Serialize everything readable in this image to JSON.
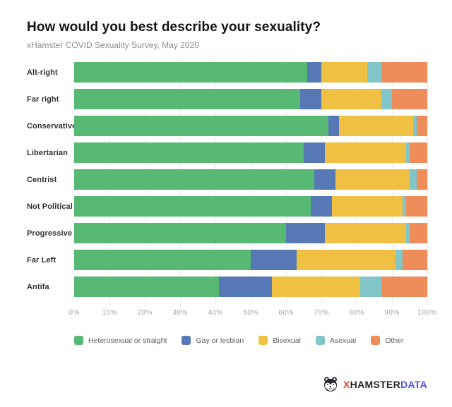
{
  "page": {
    "title": "How would you best describe your sexuality?",
    "subtitle": "xHamster COVID Sexuality Survey, May 2020"
  },
  "chart_data": {
    "type": "bar",
    "orientation": "horizontal",
    "stacked": true,
    "stack_total_percent": 100,
    "title": "How would you best describe your sexuality?",
    "subtitle": "xHamster COVID Sexuality Survey, May 2020",
    "categories": [
      "Alt-right",
      "Far right",
      "Conservative",
      "Libertarian",
      "Centrist",
      "Not Political",
      "Progressive",
      "Far Left",
      "Antifa"
    ],
    "series": [
      {
        "name": "Heterosexual or straight",
        "color": "#57b974",
        "values": [
          66,
          64,
          72,
          65,
          68,
          67,
          60,
          50,
          41
        ]
      },
      {
        "name": "Gay or lesbian",
        "color": "#5679b5",
        "values": [
          4,
          6,
          3,
          6,
          6,
          6,
          11,
          13,
          15
        ]
      },
      {
        "name": "Bisexual",
        "color": "#efc041",
        "values": [
          13,
          17,
          21,
          23,
          21,
          20,
          23,
          28,
          25
        ]
      },
      {
        "name": "Asexual",
        "color": "#82c6c9",
        "values": [
          4,
          3,
          1,
          1,
          2,
          1,
          1,
          2,
          6
        ]
      },
      {
        "name": "Other",
        "color": "#ee8c5a",
        "values": [
          13,
          10,
          3,
          5,
          3,
          6,
          5,
          7,
          13
        ]
      }
    ],
    "x_axis": {
      "min": 0,
      "max": 100,
      "ticks": [
        "0%",
        "10%",
        "20%",
        "30%",
        "40%",
        "50%",
        "60%",
        "70%",
        "80%",
        "90%",
        "100%"
      ]
    },
    "grid": true,
    "legend_position": "bottom"
  },
  "footer": {
    "brand_x": "X",
    "brand_name": "HAMSTER",
    "brand_suffix": "DATA"
  },
  "colors": {
    "background": "#ffffff",
    "title": "#141414",
    "subtitle": "#8e8e8e",
    "category_label": "#323232",
    "axis_label": "#a3a3a3",
    "gridline": "#ebebeb",
    "legend_label": "#5f5f5f",
    "brand_x": "#e8402d",
    "brand_name": "#26262e",
    "brand_suffix": "#4b54e8"
  }
}
